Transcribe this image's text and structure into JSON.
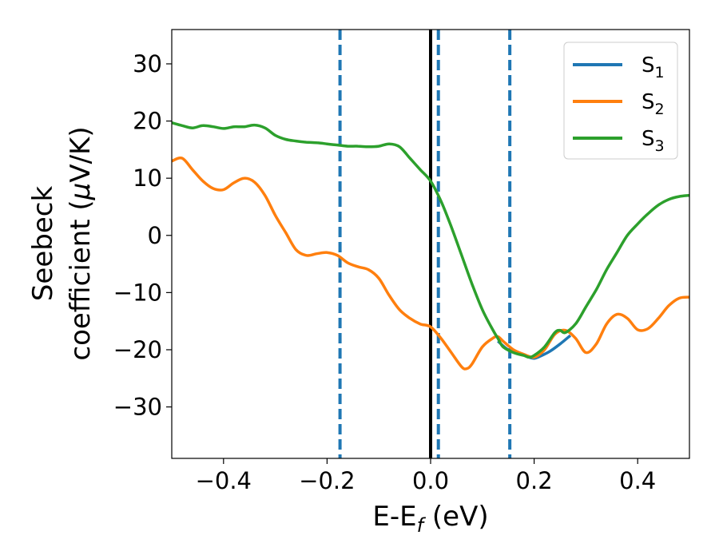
{
  "chart_data": {
    "type": "line",
    "xlabel": "E-E",
    "xlabel_sub": "f",
    "xlabel_unit": " (eV)",
    "ylabel_line1": "Seebeck",
    "ylabel_line2": "coefficient  (",
    "ylabel_mu": "μ",
    "ylabel_unit": "V/K)",
    "xlim": [
      -0.5,
      0.5
    ],
    "ylim": [
      -39,
      36
    ],
    "xticks": [
      {
        "value": -0.4,
        "label": "−0.4"
      },
      {
        "value": -0.2,
        "label": "−0.2"
      },
      {
        "value": 0.0,
        "label": "0.0"
      },
      {
        "value": 0.2,
        "label": "0.2"
      },
      {
        "value": 0.4,
        "label": "0.4"
      }
    ],
    "yticks": [
      {
        "value": -30,
        "label": "−30"
      },
      {
        "value": -20,
        "label": "−20"
      },
      {
        "value": -10,
        "label": "−10"
      },
      {
        "value": 0,
        "label": "0"
      },
      {
        "value": 10,
        "label": "10"
      },
      {
        "value": 20,
        "label": "20"
      },
      {
        "value": 30,
        "label": "30"
      }
    ],
    "grid": false,
    "legend_position": "top-right",
    "vlines": [
      {
        "x": 0.0,
        "color": "#000000",
        "style": "solid"
      },
      {
        "x": -0.175,
        "color": "#1f77b4",
        "style": "dashed"
      },
      {
        "x": 0.015,
        "color": "#1f77b4",
        "style": "dashed"
      },
      {
        "x": 0.153,
        "color": "#1f77b4",
        "style": "dashed"
      }
    ],
    "series": [
      {
        "name": "S",
        "sub": "1",
        "color": "#1f77b4",
        "x": [
          0.13,
          0.15,
          0.17,
          0.19,
          0.2,
          0.21,
          0.23,
          0.25,
          0.27
        ],
        "y": [
          -18.5,
          -20.0,
          -20.5,
          -21.3,
          -21.5,
          -21.2,
          -20.3,
          -19.0,
          -17.5
        ]
      },
      {
        "name": "S",
        "sub": "2",
        "color": "#ff7f0e",
        "x": [
          -0.5,
          -0.48,
          -0.46,
          -0.44,
          -0.42,
          -0.4,
          -0.38,
          -0.36,
          -0.34,
          -0.32,
          -0.3,
          -0.28,
          -0.26,
          -0.24,
          -0.22,
          -0.2,
          -0.18,
          -0.16,
          -0.14,
          -0.12,
          -0.1,
          -0.08,
          -0.06,
          -0.04,
          -0.02,
          0.0,
          0.02,
          0.04,
          0.06,
          0.07,
          0.08,
          0.1,
          0.12,
          0.13,
          0.14,
          0.16,
          0.18,
          0.2,
          0.22,
          0.24,
          0.26,
          0.28,
          0.3,
          0.32,
          0.34,
          0.36,
          0.38,
          0.4,
          0.42,
          0.44,
          0.46,
          0.48,
          0.5
        ],
        "y": [
          13.0,
          13.5,
          11.5,
          9.5,
          8.2,
          8.0,
          9.2,
          10.0,
          9.3,
          7.0,
          3.5,
          0.5,
          -2.5,
          -3.5,
          -3.2,
          -3.0,
          -3.5,
          -4.8,
          -5.5,
          -6.0,
          -7.5,
          -10.5,
          -13.0,
          -14.5,
          -15.5,
          -16.0,
          -18.0,
          -20.5,
          -23.0,
          -23.3,
          -22.5,
          -19.5,
          -18.0,
          -17.7,
          -18.5,
          -20.0,
          -20.8,
          -21.3,
          -20.0,
          -17.3,
          -16.6,
          -18.0,
          -20.5,
          -19.0,
          -15.5,
          -13.8,
          -14.5,
          -16.5,
          -16.3,
          -14.5,
          -12.3,
          -11.0,
          -10.8
        ]
      },
      {
        "name": "S",
        "sub": "3",
        "color": "#2ca02c",
        "x": [
          -0.5,
          -0.48,
          -0.46,
          -0.44,
          -0.42,
          -0.4,
          -0.38,
          -0.36,
          -0.34,
          -0.32,
          -0.3,
          -0.28,
          -0.26,
          -0.24,
          -0.22,
          -0.2,
          -0.18,
          -0.16,
          -0.14,
          -0.12,
          -0.1,
          -0.08,
          -0.06,
          -0.04,
          -0.02,
          0.0,
          0.02,
          0.04,
          0.06,
          0.08,
          0.1,
          0.12,
          0.13,
          0.14,
          0.16,
          0.18,
          0.19,
          0.2,
          0.22,
          0.24,
          0.25,
          0.26,
          0.28,
          0.3,
          0.32,
          0.34,
          0.36,
          0.38,
          0.4,
          0.42,
          0.44,
          0.46,
          0.48,
          0.5
        ],
        "y": [
          19.7,
          19.2,
          18.8,
          19.2,
          19.0,
          18.7,
          19.0,
          19.0,
          19.3,
          18.8,
          17.5,
          16.8,
          16.5,
          16.3,
          16.2,
          16.0,
          15.8,
          15.6,
          15.6,
          15.5,
          15.6,
          16.0,
          15.5,
          13.5,
          11.5,
          9.5,
          6.0,
          1.5,
          -3.5,
          -8.5,
          -13.0,
          -16.5,
          -18.0,
          -19.5,
          -20.5,
          -21.0,
          -21.3,
          -21.0,
          -19.5,
          -17.0,
          -16.6,
          -17.0,
          -15.5,
          -12.5,
          -9.5,
          -6.0,
          -3.0,
          0.0,
          2.0,
          3.8,
          5.3,
          6.3,
          6.8,
          7.0
        ]
      }
    ]
  }
}
